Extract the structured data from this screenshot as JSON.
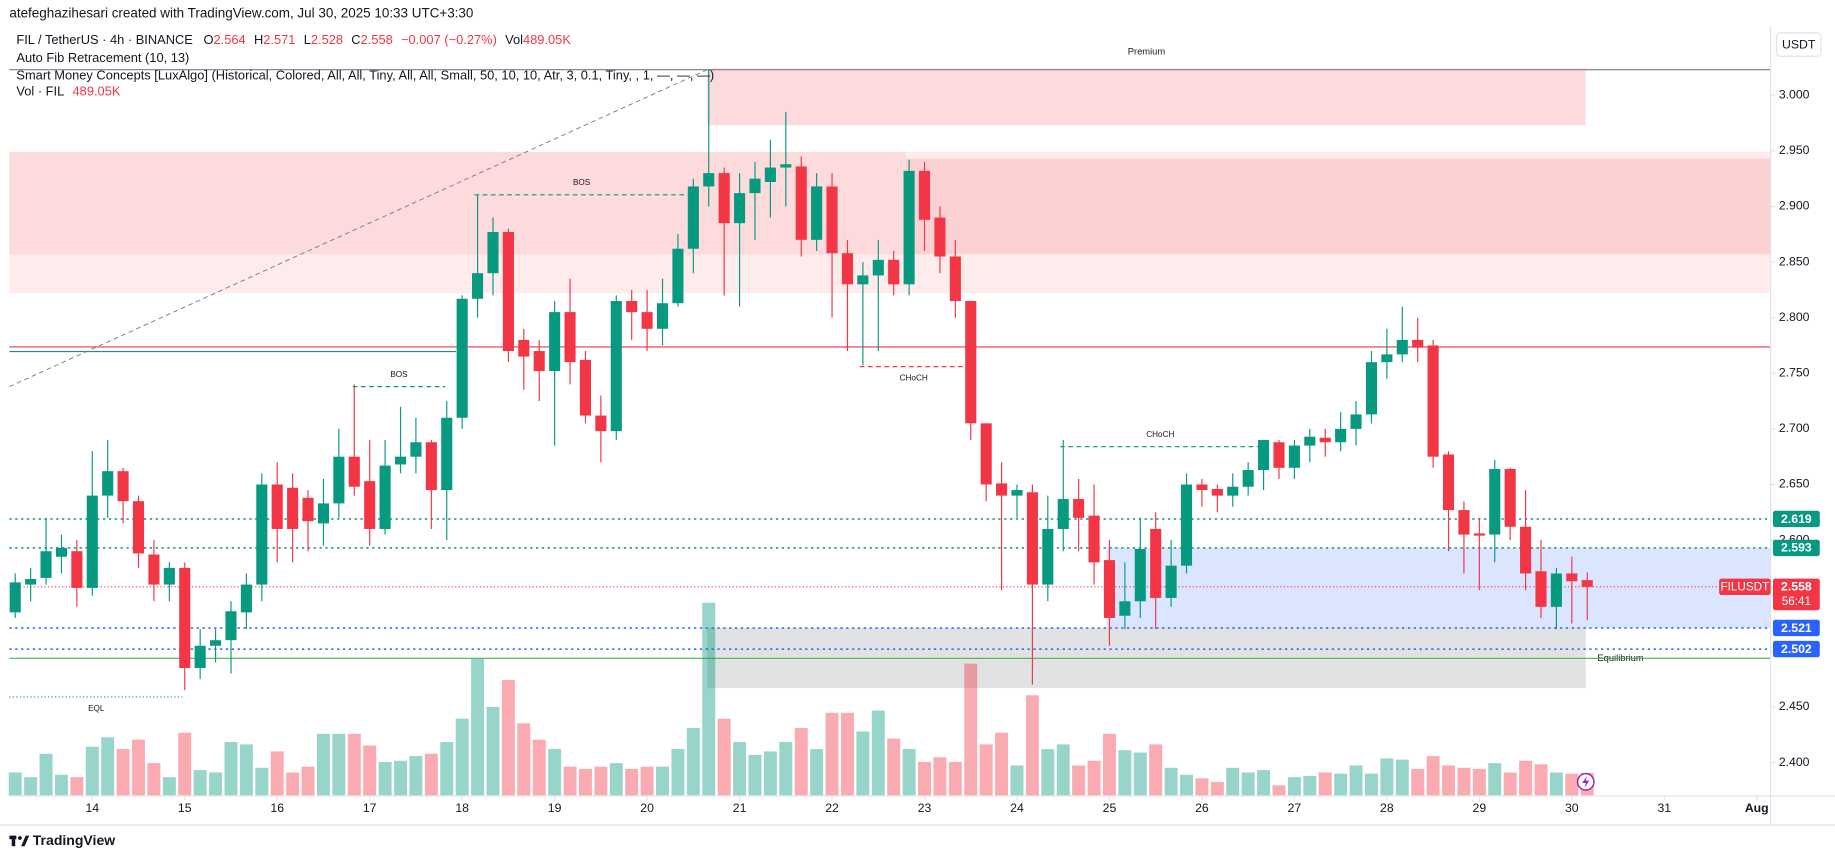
{
  "header": {
    "author_line": "atefeghazihesari created with TradingView.com, Jul 30, 2025 10:33 UTC+3:30",
    "symbol": "FIL / TetherUS · 4h · BINANCE",
    "ohlc": [
      {
        "key": "O",
        "value": "2.564"
      },
      {
        "key": "H",
        "value": "2.571"
      },
      {
        "key": "L",
        "value": "2.528"
      },
      {
        "key": "C",
        "value": "2.558"
      }
    ],
    "change": "−0.007 (−0.27%)",
    "vol_key": "Vol",
    "vol_value": "489.05K",
    "indicators": [
      "Auto Fib Retracement (10, 13)",
      "Smart Money Concepts [LuxAlgo] (Historical, Colored, All, All, Tiny, All, All, Small, 50, 10, 10, Atr, 3, 0.1, Tiny, , 1, —, —, —)"
    ],
    "volume_indicator": {
      "name": "Vol · FIL",
      "value": "489.05K"
    },
    "currency": "USDT"
  },
  "footer": {
    "brand": "TradingView"
  },
  "chart_data": {
    "type": "candlestick",
    "colors": {
      "up": "#089981",
      "down": "#f23645",
      "volume_up": "rgba(8,153,129,0.42)",
      "volume_down": "rgba(242,54,69,0.42)"
    },
    "candles": [
      [
        2.535,
        2.57,
        2.53,
        2.562
      ],
      [
        2.56,
        2.575,
        2.545,
        2.565
      ],
      [
        2.566,
        2.62,
        2.56,
        2.59
      ],
      [
        2.585,
        2.605,
        2.57,
        2.593
      ],
      [
        2.59,
        2.6,
        2.54,
        2.557
      ],
      [
        2.557,
        2.68,
        2.55,
        2.64
      ],
      [
        2.64,
        2.69,
        2.62,
        2.662
      ],
      [
        2.662,
        2.665,
        2.615,
        2.635
      ],
      [
        2.635,
        2.64,
        2.575,
        2.588
      ],
      [
        2.587,
        2.6,
        2.545,
        2.56
      ],
      [
        2.56,
        2.58,
        2.545,
        2.575
      ],
      [
        2.575,
        2.58,
        2.465,
        2.485
      ],
      [
        2.485,
        2.52,
        2.475,
        2.505
      ],
      [
        2.505,
        2.52,
        2.49,
        2.51
      ],
      [
        2.51,
        2.545,
        2.48,
        2.536
      ],
      [
        2.535,
        2.57,
        2.52,
        2.56
      ],
      [
        2.56,
        2.66,
        2.545,
        2.65
      ],
      [
        2.65,
        2.67,
        2.58,
        2.61
      ],
      [
        2.647,
        2.66,
        2.58,
        2.61
      ],
      [
        2.638,
        2.645,
        2.59,
        2.617
      ],
      [
        2.615,
        2.655,
        2.595,
        2.633
      ],
      [
        2.633,
        2.7,
        2.62,
        2.675
      ],
      [
        2.675,
        2.74,
        2.64,
        2.648
      ],
      [
        2.653,
        2.69,
        2.595,
        2.61
      ],
      [
        2.61,
        2.69,
        2.605,
        2.667
      ],
      [
        2.668,
        2.72,
        2.66,
        2.675
      ],
      [
        2.675,
        2.71,
        2.66,
        2.688
      ],
      [
        2.688,
        2.69,
        2.61,
        2.645
      ],
      [
        2.645,
        2.725,
        2.6,
        2.71
      ],
      [
        2.71,
        2.82,
        2.7,
        2.817
      ],
      [
        2.817,
        2.91,
        2.8,
        2.84
      ],
      [
        2.84,
        2.89,
        2.82,
        2.877
      ],
      [
        2.877,
        2.88,
        2.76,
        2.77
      ],
      [
        2.78,
        2.79,
        2.735,
        2.765
      ],
      [
        2.77,
        2.78,
        2.725,
        2.752
      ],
      [
        2.752,
        2.815,
        2.685,
        2.805
      ],
      [
        2.805,
        2.835,
        2.74,
        2.76
      ],
      [
        2.762,
        2.77,
        2.705,
        2.712
      ],
      [
        2.712,
        2.73,
        2.67,
        2.698
      ],
      [
        2.698,
        2.82,
        2.69,
        2.815
      ],
      [
        2.815,
        2.825,
        2.78,
        2.805
      ],
      [
        2.805,
        2.825,
        2.77,
        2.79
      ],
      [
        2.79,
        2.835,
        2.775,
        2.813
      ],
      [
        2.813,
        2.875,
        2.81,
        2.862
      ],
      [
        2.862,
        2.925,
        2.84,
        2.918
      ],
      [
        2.918,
        3.023,
        2.9,
        2.93
      ],
      [
        2.93,
        2.935,
        2.82,
        2.885
      ],
      [
        2.885,
        2.93,
        2.81,
        2.912
      ],
      [
        2.912,
        2.94,
        2.87,
        2.925
      ],
      [
        2.922,
        2.96,
        2.89,
        2.935
      ],
      [
        2.935,
        2.985,
        2.9,
        2.938
      ],
      [
        2.936,
        2.945,
        2.855,
        2.87
      ],
      [
        2.87,
        2.93,
        2.86,
        2.918
      ],
      [
        2.918,
        2.93,
        2.8,
        2.858
      ],
      [
        2.858,
        2.87,
        2.77,
        2.83
      ],
      [
        2.83,
        2.85,
        2.757,
        2.838
      ],
      [
        2.838,
        2.87,
        2.77,
        2.852
      ],
      [
        2.852,
        2.86,
        2.82,
        2.83
      ],
      [
        2.83,
        2.942,
        2.82,
        2.932
      ],
      [
        2.932,
        2.94,
        2.86,
        2.888
      ],
      [
        2.89,
        2.9,
        2.84,
        2.855
      ],
      [
        2.855,
        2.87,
        2.8,
        2.815
      ],
      [
        2.815,
        2.815,
        2.69,
        2.705
      ],
      [
        2.705,
        2.705,
        2.635,
        2.65
      ],
      [
        2.651,
        2.67,
        2.555,
        2.64
      ],
      [
        2.64,
        2.65,
        2.62,
        2.645
      ],
      [
        2.643,
        2.65,
        2.47,
        2.56
      ],
      [
        2.56,
        2.64,
        2.545,
        2.61
      ],
      [
        2.61,
        2.69,
        2.59,
        2.637
      ],
      [
        2.637,
        2.655,
        2.59,
        2.62
      ],
      [
        2.622,
        2.65,
        2.56,
        2.58
      ],
      [
        2.582,
        2.6,
        2.505,
        2.53
      ],
      [
        2.532,
        2.58,
        2.52,
        2.545
      ],
      [
        2.545,
        2.62,
        2.53,
        2.592
      ],
      [
        2.61,
        2.625,
        2.52,
        2.548
      ],
      [
        2.548,
        2.6,
        2.54,
        2.577
      ],
      [
        2.577,
        2.66,
        2.57,
        2.65
      ],
      [
        2.65,
        2.655,
        2.63,
        2.645
      ],
      [
        2.646,
        2.65,
        2.625,
        2.64
      ],
      [
        2.64,
        2.66,
        2.63,
        2.648
      ],
      [
        2.648,
        2.67,
        2.64,
        2.663
      ],
      [
        2.663,
        2.69,
        2.645,
        2.69
      ],
      [
        2.688,
        2.69,
        2.655,
        2.665
      ],
      [
        2.665,
        2.69,
        2.655,
        2.685
      ],
      [
        2.685,
        2.7,
        2.67,
        2.693
      ],
      [
        2.692,
        2.7,
        2.675,
        2.688
      ],
      [
        2.688,
        2.715,
        2.68,
        2.7
      ],
      [
        2.7,
        2.725,
        2.685,
        2.713
      ],
      [
        2.713,
        2.77,
        2.705,
        2.76
      ],
      [
        2.76,
        2.79,
        2.745,
        2.767
      ],
      [
        2.767,
        2.81,
        2.76,
        2.78
      ],
      [
        2.78,
        2.8,
        2.76,
        2.773
      ],
      [
        2.775,
        2.78,
        2.665,
        2.675
      ],
      [
        2.677,
        2.68,
        2.59,
        2.627
      ],
      [
        2.627,
        2.635,
        2.57,
        2.605
      ],
      [
        2.606,
        2.62,
        2.555,
        2.604
      ],
      [
        2.605,
        2.672,
        2.58,
        2.664
      ],
      [
        2.664,
        2.665,
        2.6,
        2.612
      ],
      [
        2.612,
        2.645,
        2.555,
        2.57
      ],
      [
        2.572,
        2.6,
        2.53,
        2.54
      ],
      [
        2.54,
        2.575,
        2.52,
        2.57
      ],
      [
        2.57,
        2.585,
        2.525,
        2.563
      ],
      [
        2.564,
        2.571,
        2.528,
        2.558
      ]
    ],
    "volumes": [
      500,
      400,
      900,
      450,
      400,
      1050,
      1250,
      1000,
      1200,
      700,
      400,
      1350,
      550,
      500,
      1150,
      1100,
      600,
      950,
      500,
      625,
      1325,
      1325,
      1325,
      1075,
      725,
      750,
      850,
      900,
      1150,
      1650,
      2925,
      1900,
      2475,
      1550,
      1200,
      1000,
      625,
      575,
      625,
      700,
      575,
      625,
      625,
      1000,
      1450,
      4125,
      1650,
      1150,
      875,
      950,
      1150,
      1450,
      1000,
      1775,
      1775,
      1375,
      1825,
      1225,
      1000,
      725,
      825,
      725,
      2825,
      1100,
      1350,
      650,
      2150,
      1000,
      1100,
      650,
      750,
      1325,
      975,
      925,
      1100,
      600,
      450,
      375,
      300,
      600,
      500,
      550,
      225,
      400,
      425,
      500,
      475,
      650,
      475,
      800,
      775,
      575,
      850,
      650,
      600,
      575,
      700,
      500,
      750,
      675,
      500,
      475,
      489.05
    ],
    "xlim": [
      -0.38,
      113.9
    ],
    "xticks": [
      {
        "value": 5,
        "label": "14"
      },
      {
        "value": 11,
        "label": "15"
      },
      {
        "value": 17,
        "label": "16"
      },
      {
        "value": 23,
        "label": "17"
      },
      {
        "value": 29,
        "label": "18"
      },
      {
        "value": 35,
        "label": "19"
      },
      {
        "value": 41,
        "label": "20"
      },
      {
        "value": 47,
        "label": "21"
      },
      {
        "value": 53,
        "label": "22"
      },
      {
        "value": 59,
        "label": "23"
      },
      {
        "value": 65,
        "label": "24"
      },
      {
        "value": 71,
        "label": "25"
      },
      {
        "value": 77,
        "label": "26"
      },
      {
        "value": 83,
        "label": "27"
      },
      {
        "value": 89,
        "label": "28"
      },
      {
        "value": 95,
        "label": "29"
      },
      {
        "value": 101,
        "label": "30"
      },
      {
        "value": 107,
        "label": "31"
      },
      {
        "value": 113,
        "label": "Aug"
      }
    ],
    "ylim": [
      2.37,
      3.054
    ],
    "yticks": [
      {
        "value": 2.4,
        "label": "2.400"
      },
      {
        "value": 2.45,
        "label": "2.450"
      },
      {
        "value": 2.5,
        "label": "2.500"
      },
      {
        "value": 2.55,
        "label": "2.550"
      },
      {
        "value": 2.6,
        "label": "2.600"
      },
      {
        "value": 2.65,
        "label": "2.650"
      },
      {
        "value": 2.7,
        "label": "2.700"
      },
      {
        "value": 2.75,
        "label": "2.750"
      },
      {
        "value": 2.8,
        "label": "2.800"
      },
      {
        "value": 2.85,
        "label": "2.850"
      },
      {
        "value": 2.9,
        "label": "2.900"
      },
      {
        "value": 2.95,
        "label": "2.950"
      },
      {
        "value": 3,
        "label": "3.000"
      }
    ],
    "zones": [
      {
        "top": 2.949,
        "bottom": 2.822,
        "from": -0.38,
        "to": 113.9,
        "color": "rgba(242,54,69,0.10)"
      },
      {
        "top": 2.949,
        "bottom": 2.857,
        "from": -0.38,
        "to": 57.8,
        "color": "rgba(242,54,69,0.09)"
      },
      {
        "top": 2.943,
        "bottom": 2.857,
        "from": 57.8,
        "to": 113.9,
        "color": "rgba(242,54,69,0.14)"
      },
      {
        "top": 3.024,
        "bottom": 2.973,
        "from": 44.9,
        "to": 101.9,
        "color": "rgba(242,54,69,0.18)",
        "label": "Premium",
        "label_color": "#f23645"
      },
      {
        "top": 2.593,
        "bottom": 2.521,
        "from": 70.8,
        "to": 113.9,
        "color": "rgba(41,98,255,0.17)"
      },
      {
        "top": 2.521,
        "bottom": 2.467,
        "from": 44.9,
        "to": 101.9,
        "color": "rgba(120,123,134,0.22)",
        "label": "Equilibrium",
        "label_color": "#b2b5be"
      }
    ],
    "levels": [
      {
        "price": 3.023,
        "from": -0.38,
        "to": 113.9,
        "color": "#787b86"
      },
      {
        "price": 2.7737,
        "from": -0.38,
        "to": 113.9,
        "color": "#f23645"
      },
      {
        "price": 2.7695,
        "from": -0.38,
        "to": 28.6,
        "color": "#089981"
      },
      {
        "price": 2.4937,
        "from": -0.38,
        "to": 113.9,
        "color": "#4caf50"
      }
    ],
    "fib_line": {
      "x": [
        -0.38,
        44.9
      ],
      "y": [
        2.738,
        3.023
      ],
      "color": "#787b86"
    },
    "structures": [
      {
        "label": "BOS",
        "price": 2.9105,
        "from": 29.8,
        "to": 43.7,
        "color": "#089981",
        "side": "above"
      },
      {
        "label": "BOS",
        "price": 2.738,
        "from": 21.9,
        "to": 27.9,
        "color": "#089981",
        "side": "above"
      },
      {
        "label": "CHoCH",
        "price": 2.756,
        "from": 54.8,
        "to": 61.8,
        "color": "#f23645",
        "side": "below"
      },
      {
        "label": "CHoCH",
        "price": 2.684,
        "from": 67.8,
        "to": 80.8,
        "color": "#089981",
        "side": "above"
      },
      {
        "label": "EQL",
        "price": 2.459,
        "from": -0.38,
        "to": 10.9,
        "color": "#089981",
        "side": "below"
      }
    ],
    "badges": [
      {
        "price": 2.619,
        "color": "#089981"
      },
      {
        "price": 2.593,
        "color": "#089981"
      },
      {
        "price": 2.521,
        "color": "#2962ff"
      },
      {
        "price": 2.502,
        "color": "#2962ff"
      }
    ],
    "last_price": {
      "symbol": "FILUSDT",
      "price": 2.558,
      "countdown": "56:41",
      "color": "#f23645"
    }
  }
}
